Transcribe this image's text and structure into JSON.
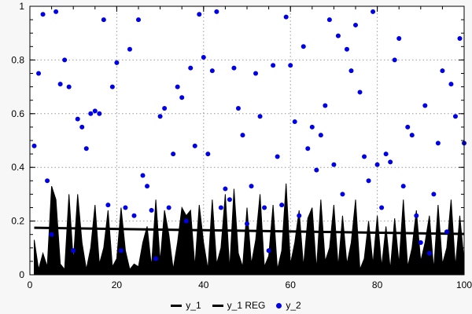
{
  "chart_data": {
    "type": "mixed",
    "title": "",
    "xlabel": "",
    "ylabel": "",
    "x_range": [
      0,
      100
    ],
    "y_range": [
      0,
      1
    ],
    "x_ticks": [
      0,
      20,
      40,
      60,
      80,
      100
    ],
    "y_ticks": [
      0,
      0.2,
      0.4,
      0.6,
      0.8,
      1
    ],
    "x_minor_step": 5,
    "y_minor_step": 0.05,
    "grid": true,
    "grid_color": "#999999",
    "background_color": "#f7f7f7",
    "plot_background": "#ffffff",
    "border_color": "#000000",
    "legend_position": "bottom-center",
    "x_start": 1,
    "x_step": 1,
    "series": [
      {
        "name": "y_1",
        "type": "area",
        "color": "#000000",
        "values": [
          0.13,
          0.02,
          0.08,
          0.03,
          0.33,
          0.28,
          0.04,
          0.02,
          0.3,
          0.05,
          0.3,
          0.12,
          0.02,
          0.1,
          0.26,
          0.04,
          0.1,
          0.24,
          0.03,
          0.06,
          0.25,
          0.09,
          0.02,
          0.04,
          0.03,
          0.12,
          0.18,
          0.03,
          0.28,
          0.05,
          0.24,
          0.15,
          0.02,
          0.12,
          0.25,
          0.22,
          0.24,
          0.03,
          0.26,
          0.12,
          0.02,
          0.28,
          0.04,
          0.1,
          0.3,
          0.02,
          0.32,
          0.08,
          0.03,
          0.25,
          0.04,
          0.13,
          0.3,
          0.03,
          0.07,
          0.26,
          0.02,
          0.09,
          0.34,
          0.04,
          0.12,
          0.24,
          0.03,
          0.21,
          0.25,
          0.02,
          0.28,
          0.05,
          0.1,
          0.26,
          0.03,
          0.22,
          0.04,
          0.12,
          0.28,
          0.02,
          0.06,
          0.2,
          0.04,
          0.22,
          0.03,
          0.18,
          0.02,
          0.21,
          0.04,
          0.28,
          0.03,
          0.1,
          0.24,
          0.05,
          0.12,
          0.22,
          0.02,
          0.26,
          0.04,
          0.1,
          0.28,
          0.03,
          0.22,
          0.05
        ]
      },
      {
        "name": "y_1 REG",
        "type": "line",
        "color": "#000000",
        "line_width": 3,
        "start_y": 0.175,
        "end_y": 0.152
      },
      {
        "name": "y_2",
        "type": "scatter",
        "color": "#0000e6",
        "point_radius": 3,
        "values": [
          0.48,
          0.75,
          0.97,
          0.35,
          0.15,
          0.98,
          0.71,
          0.8,
          0.7,
          0.09,
          0.58,
          0.55,
          0.47,
          0.6,
          0.61,
          0.6,
          0.95,
          0.26,
          0.7,
          0.79,
          0.09,
          0.25,
          0.84,
          0.22,
          0.95,
          0.37,
          0.33,
          0.24,
          0.06,
          0.59,
          0.62,
          0.25,
          0.45,
          0.7,
          0.66,
          0.2,
          0.77,
          0.48,
          0.97,
          0.81,
          0.45,
          0.76,
          0.98,
          0.25,
          0.32,
          0.28,
          0.77,
          0.62,
          0.52,
          0.19,
          0.33,
          0.75,
          0.59,
          0.25,
          0.09,
          0.78,
          0.44,
          0.26,
          0.96,
          0.78,
          0.57,
          0.22,
          0.85,
          0.47,
          0.55,
          0.39,
          0.52,
          0.63,
          0.95,
          0.41,
          0.89,
          0.3,
          0.84,
          0.76,
          0.93,
          0.68,
          0.44,
          0.35,
          0.98,
          0.41,
          0.25,
          0.45,
          0.42,
          0.8,
          0.88,
          0.33,
          0.55,
          0.52,
          0.22,
          0.12,
          0.63,
          0.08,
          0.3,
          0.49,
          0.76,
          0.16,
          0.71,
          0.59,
          0.88,
          0.49
        ]
      }
    ]
  },
  "legend": {
    "items": [
      {
        "label": "y_1"
      },
      {
        "label": "y_1 REG"
      },
      {
        "label": "y_2"
      }
    ]
  }
}
